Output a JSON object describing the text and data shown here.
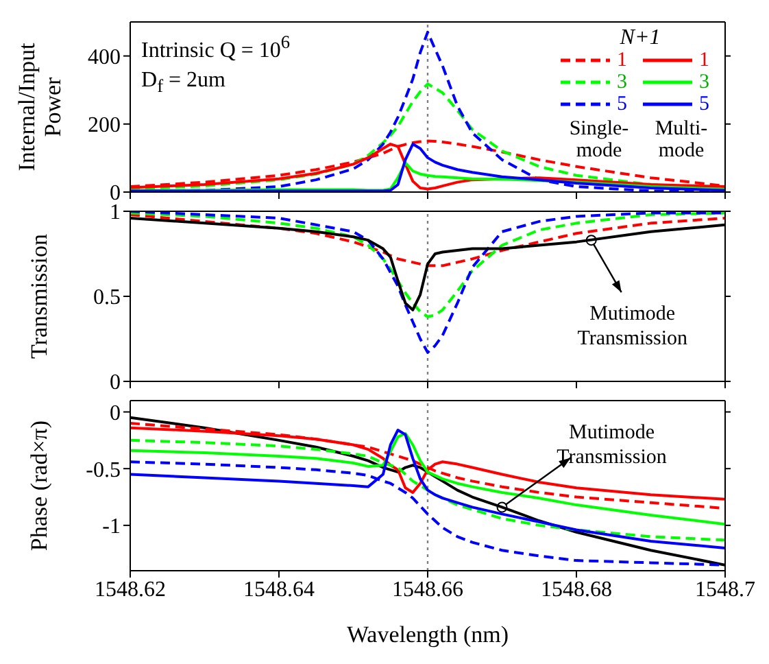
{
  "chart_data": [
    {
      "type": "line",
      "ylabel": "Internal/Input Power",
      "legend_title": "N+1",
      "legend": "top right",
      "tick_labels": "y",
      "annotations": [
        "Intrinsic Q = 10$^{6}$",
        "D$_{f}$ =  2um",
        "Single-mode",
        "Multi-mode"
      ],
      "x": [
        1548.62,
        1548.63,
        1548.64,
        1548.645,
        1548.65,
        1548.652,
        1548.654,
        1548.655,
        1548.656,
        1548.657,
        1548.658,
        1548.659,
        1548.66,
        1548.661,
        1548.662,
        1548.664,
        1548.666,
        1548.67,
        1548.675,
        1548.68,
        1548.69,
        1548.7
      ],
      "xlim": [
        1548.62,
        1548.7
      ],
      "xticks": [
        1548.62,
        1548.64,
        1548.66,
        1548.68,
        1548.7
      ],
      "ylim": [
        0,
        500
      ],
      "yticks": [
        0,
        200,
        400
      ],
      "ref_lines": [
        {
          "axis": "x",
          "value": 1548.66,
          "color": "#808080",
          "line_style": "dotted"
        }
      ],
      "series": [
        {
          "name": "1",
          "color": "#ff0000",
          "line_style": "dashed",
          "values": [
            16,
            29,
            49,
            66,
            88,
            101,
            114,
            124,
            134,
            140,
            145,
            148,
            150,
            149,
            147,
            141,
            134,
            118,
            95,
            75,
            42,
            18
          ]
        },
        {
          "name": "3",
          "color": "#00ff00",
          "line_style": "dashed",
          "values": [
            9,
            18,
            36,
            53,
            82,
            108,
            145,
            167,
            193,
            230,
            266,
            295,
            318,
            305,
            292,
            240,
            184,
            121,
            75,
            49,
            22,
            9
          ]
        },
        {
          "name": "5",
          "color": "#0000ff",
          "line_style": "dashed",
          "values": [
            3,
            5,
            16,
            36,
            68,
            95,
            141,
            176,
            220,
            275,
            332,
            410,
            470,
            420,
            371,
            253,
            174,
            95,
            36,
            16,
            3,
            3
          ]
        },
        {
          "name": "1",
          "color": "#ff0000",
          "line_style": "solid",
          "values": [
            13,
            22,
            39,
            55,
            82,
            101,
            128,
            141,
            134,
            82,
            32,
            12,
            9,
            12,
            18,
            29,
            36,
            39,
            42,
            36,
            22,
            16
          ]
        },
        {
          "name": "3",
          "color": "#00ff00",
          "line_style": "solid",
          "values": [
            5,
            5,
            7,
            7,
            7,
            5,
            5,
            9,
            42,
            86,
            62,
            53,
            49,
            46,
            45,
            42,
            39,
            38,
            34,
            29,
            16,
            8
          ]
        },
        {
          "name": "5",
          "color": "#0000ff",
          "line_style": "solid",
          "values": [
            3,
            3,
            3,
            3,
            3,
            3,
            3,
            5,
            22,
            95,
            141,
            128,
            101,
            88,
            79,
            66,
            58,
            45,
            36,
            26,
            12,
            5
          ]
        }
      ]
    },
    {
      "type": "line",
      "ylabel": "Transmission",
      "tick_labels": "y",
      "annotations": [
        {
          "text": "Mutimode Transmission",
          "x": 1548.682,
          "y": 0.83
        }
      ],
      "x": [
        1548.62,
        1548.63,
        1548.64,
        1548.645,
        1548.65,
        1548.652,
        1548.654,
        1548.655,
        1548.656,
        1548.657,
        1548.658,
        1548.659,
        1548.66,
        1548.661,
        1548.662,
        1548.664,
        1548.666,
        1548.67,
        1548.675,
        1548.68,
        1548.69,
        1548.7
      ],
      "xlim": [
        1548.62,
        1548.7
      ],
      "xticks": [
        1548.62,
        1548.64,
        1548.66,
        1548.68,
        1548.7
      ],
      "ylim": [
        0,
        1
      ],
      "yticks": [
        0,
        0.5,
        1
      ],
      "ref_lines": [
        {
          "axis": "x",
          "value": 1548.66,
          "color": "#808080",
          "line_style": "dotted"
        }
      ],
      "series": [
        {
          "color": "#ff0000",
          "line_style": "dashed",
          "values": [
            0.98,
            0.94,
            0.9,
            0.87,
            0.82,
            0.79,
            0.76,
            0.74,
            0.72,
            0.71,
            0.7,
            0.69,
            0.68,
            0.68,
            0.68,
            0.7,
            0.72,
            0.77,
            0.82,
            0.87,
            0.93,
            0.96
          ]
        },
        {
          "color": "#00ff00",
          "line_style": "dashed",
          "values": [
            0.99,
            0.97,
            0.93,
            0.9,
            0.85,
            0.8,
            0.72,
            0.66,
            0.59,
            0.52,
            0.46,
            0.41,
            0.38,
            0.39,
            0.42,
            0.53,
            0.65,
            0.8,
            0.89,
            0.93,
            0.98,
            0.99
          ]
        },
        {
          "color": "#0000ff",
          "line_style": "dashed",
          "values": [
            1.0,
            0.98,
            0.96,
            0.92,
            0.88,
            0.83,
            0.72,
            0.64,
            0.56,
            0.45,
            0.35,
            0.25,
            0.17,
            0.21,
            0.27,
            0.46,
            0.67,
            0.88,
            0.94,
            0.97,
            0.99,
            0.99
          ]
        },
        {
          "color": "#000000",
          "line_style": "solid",
          "values": [
            0.96,
            0.93,
            0.9,
            0.88,
            0.85,
            0.83,
            0.78,
            0.73,
            0.59,
            0.46,
            0.42,
            0.51,
            0.69,
            0.75,
            0.76,
            0.77,
            0.78,
            0.78,
            0.8,
            0.82,
            0.88,
            0.92
          ]
        }
      ]
    },
    {
      "type": "line",
      "ylabel": "Phase (rad×π)",
      "xlabel": "Wavelength (nm)",
      "annotations": [
        {
          "text": "Mutimode Transmission",
          "x": 1548.67,
          "y": -0.84
        }
      ],
      "x": [
        1548.62,
        1548.63,
        1548.64,
        1548.645,
        1548.65,
        1548.652,
        1548.654,
        1548.655,
        1548.656,
        1548.657,
        1548.658,
        1548.659,
        1548.66,
        1548.661,
        1548.662,
        1548.664,
        1548.666,
        1548.67,
        1548.675,
        1548.68,
        1548.69,
        1548.7
      ],
      "xlim": [
        1548.62,
        1548.7
      ],
      "xticks": [
        1548.62,
        1548.64,
        1548.66,
        1548.68,
        1548.7
      ],
      "ylim": [
        -1.4,
        0.1
      ],
      "yticks": [
        -1,
        -0.5,
        0
      ],
      "ref_lines": [
        {
          "axis": "x",
          "value": 1548.66,
          "color": "#808080",
          "line_style": "dotted"
        }
      ],
      "series": [
        {
          "color": "#000000",
          "line_style": "solid",
          "values": [
            -0.05,
            -0.14,
            -0.25,
            -0.31,
            -0.39,
            -0.43,
            -0.49,
            -0.51,
            -0.53,
            -0.49,
            -0.47,
            -0.49,
            -0.53,
            -0.57,
            -0.61,
            -0.69,
            -0.75,
            -0.84,
            -0.96,
            -1.06,
            -1.22,
            -1.35
          ]
        },
        {
          "color": "#ff0000",
          "line_style": "dashed",
          "values": [
            -0.1,
            -0.15,
            -0.2,
            -0.24,
            -0.29,
            -0.31,
            -0.35,
            -0.37,
            -0.39,
            -0.41,
            -0.43,
            -0.46,
            -0.49,
            -0.52,
            -0.54,
            -0.58,
            -0.61,
            -0.66,
            -0.71,
            -0.75,
            -0.8,
            -0.85
          ]
        },
        {
          "color": "#ff0000",
          "line_style": "solid",
          "values": [
            -0.14,
            -0.17,
            -0.21,
            -0.24,
            -0.29,
            -0.33,
            -0.41,
            -0.47,
            -0.51,
            -0.67,
            -0.71,
            -0.63,
            -0.51,
            -0.46,
            -0.44,
            -0.46,
            -0.49,
            -0.55,
            -0.62,
            -0.67,
            -0.73,
            -0.77
          ]
        },
        {
          "color": "#00ff00",
          "line_style": "dashed",
          "values": [
            -0.25,
            -0.27,
            -0.3,
            -0.33,
            -0.37,
            -0.39,
            -0.45,
            -0.47,
            -0.49,
            -0.55,
            -0.61,
            -0.65,
            -0.69,
            -0.73,
            -0.76,
            -0.82,
            -0.86,
            -0.94,
            -1.0,
            -1.04,
            -1.1,
            -1.13
          ]
        },
        {
          "color": "#00ff00",
          "line_style": "solid",
          "values": [
            -0.34,
            -0.36,
            -0.39,
            -0.41,
            -0.45,
            -0.48,
            -0.47,
            -0.35,
            -0.22,
            -0.19,
            -0.29,
            -0.43,
            -0.53,
            -0.56,
            -0.59,
            -0.63,
            -0.66,
            -0.71,
            -0.76,
            -0.82,
            -0.91,
            -0.99
          ]
        },
        {
          "color": "#0000ff",
          "line_style": "dashed",
          "values": [
            -0.44,
            -0.46,
            -0.49,
            -0.51,
            -0.54,
            -0.56,
            -0.61,
            -0.63,
            -0.67,
            -0.71,
            -0.76,
            -0.83,
            -0.9,
            -0.96,
            -1.02,
            -1.1,
            -1.15,
            -1.22,
            -1.27,
            -1.31,
            -1.33,
            -1.35
          ]
        },
        {
          "color": "#0000ff",
          "line_style": "solid",
          "values": [
            -0.55,
            -0.58,
            -0.61,
            -0.63,
            -0.65,
            -0.66,
            -0.55,
            -0.29,
            -0.16,
            -0.2,
            -0.41,
            -0.59,
            -0.69,
            -0.73,
            -0.76,
            -0.8,
            -0.84,
            -0.9,
            -0.97,
            -1.04,
            -1.14,
            -1.2
          ]
        }
      ]
    }
  ]
}
